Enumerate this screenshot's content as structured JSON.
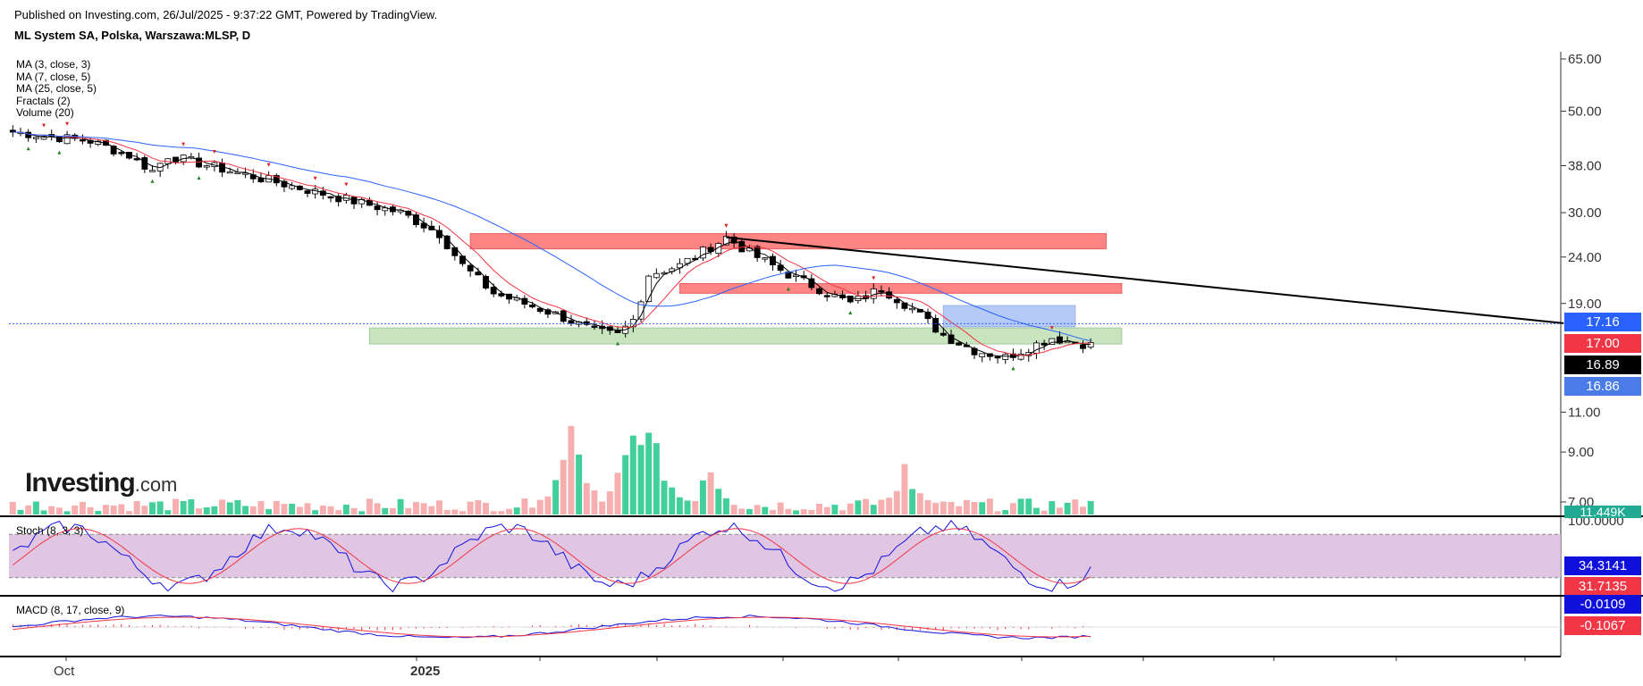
{
  "header": {
    "published": "Published on Investing.com, 26/Jul/2025 - 9:37:22 GMT, Powered by TradingView.",
    "symbol": "ML System SA, Polska, Warszawa:MLSP, D"
  },
  "indicators": [
    "MA (3, close, 3)",
    "MA (7, close, 5)",
    "MA (25, close, 5)",
    "Fractals (2)",
    "Volume (20)"
  ],
  "logo": {
    "brand": "Investing",
    "suffix": ".com"
  },
  "panes": {
    "stoch_label": "Stoch (8, 3, 3)",
    "macd_label": "MACD (8, 17, close, 9)"
  },
  "price_tags": [
    {
      "value": "17.16",
      "color": "#2962ff"
    },
    {
      "value": "17.00",
      "color": "#f23645"
    },
    {
      "value": "16.89",
      "color": "#000000"
    },
    {
      "value": "16.86",
      "color": "#4a7be8"
    },
    {
      "value": "11.449K",
      "color": "#22ab94"
    },
    {
      "value": "34.3141",
      "color": "#1010dd"
    },
    {
      "value": "31.7135",
      "color": "#f23645"
    },
    {
      "value": "-0.0109",
      "color": "#1010dd"
    },
    {
      "value": "-0.1067",
      "color": "#f23645"
    }
  ],
  "colors": {
    "up": "#ffffff",
    "down": "#000000",
    "ma3": "#000000",
    "ma7": "#f23645",
    "ma25": "#2962ff",
    "vol_up": "#22c78a",
    "vol_down": "#f5a0a0"
  },
  "chart_data": {
    "type": "candlestick",
    "yscale": "log",
    "price_axis_ticks": [
      "65.00",
      "50.00",
      "38.00",
      "30.00",
      "24.00",
      "19.00",
      "11.00",
      "9.00",
      "7.00"
    ],
    "stoch_axis_ticks": [
      "100.0000"
    ],
    "x_axis_ticks": [
      "Oct",
      "2025"
    ],
    "price_anchor_path": [
      [
        0,
        45
      ],
      [
        10,
        43
      ],
      [
        15,
        40
      ],
      [
        18,
        37
      ],
      [
        20,
        40
      ],
      [
        28,
        37
      ],
      [
        40,
        33
      ],
      [
        50,
        30
      ],
      [
        55,
        27
      ],
      [
        58,
        23
      ],
      [
        62,
        20
      ],
      [
        70,
        18
      ],
      [
        75,
        16.5
      ],
      [
        78,
        16.2
      ],
      [
        80,
        17.5
      ],
      [
        82,
        22
      ],
      [
        86,
        23
      ],
      [
        92,
        26.5
      ],
      [
        95,
        24.5
      ],
      [
        100,
        22
      ],
      [
        108,
        19
      ],
      [
        112,
        20.5
      ],
      [
        116,
        18.5
      ],
      [
        120,
        16.2
      ],
      [
        124,
        15
      ],
      [
        128,
        14.5
      ],
      [
        134,
        16
      ],
      [
        140,
        15.3
      ],
      [
        143,
        15.4
      ],
      [
        144,
        20.5
      ],
      [
        148,
        19
      ],
      [
        152,
        17.5
      ],
      [
        156,
        16.6
      ],
      [
        160,
        17.2
      ],
      [
        165,
        16.8
      ],
      [
        170,
        16.6
      ],
      [
        172,
        16.4
      ],
      [
        173,
        19
      ],
      [
        178,
        17.8
      ],
      [
        183,
        17.8
      ],
      [
        190,
        17.3
      ],
      [
        196,
        16.9
      ]
    ],
    "resistance_zones": [
      [
        25,
        27
      ],
      [
        20,
        21
      ]
    ],
    "support_zone": [
      15.5,
      16.8
    ],
    "consolidation_box": [
      16.9,
      18.8
    ],
    "horizontal_price": 17.16,
    "trendline": [
      [
        92,
        26.5
      ],
      [
        200,
        17.2
      ]
    ],
    "stoch_band": [
      20,
      80
    ],
    "volume_peaks": [
      [
        72,
        1.0
      ],
      [
        80,
        1.0
      ],
      [
        82,
        1.05
      ],
      [
        90,
        0.5
      ],
      [
        115,
        0.55
      ],
      [
        143,
        1.0
      ],
      [
        144,
        0.85
      ],
      [
        174,
        0.35
      ]
    ]
  }
}
